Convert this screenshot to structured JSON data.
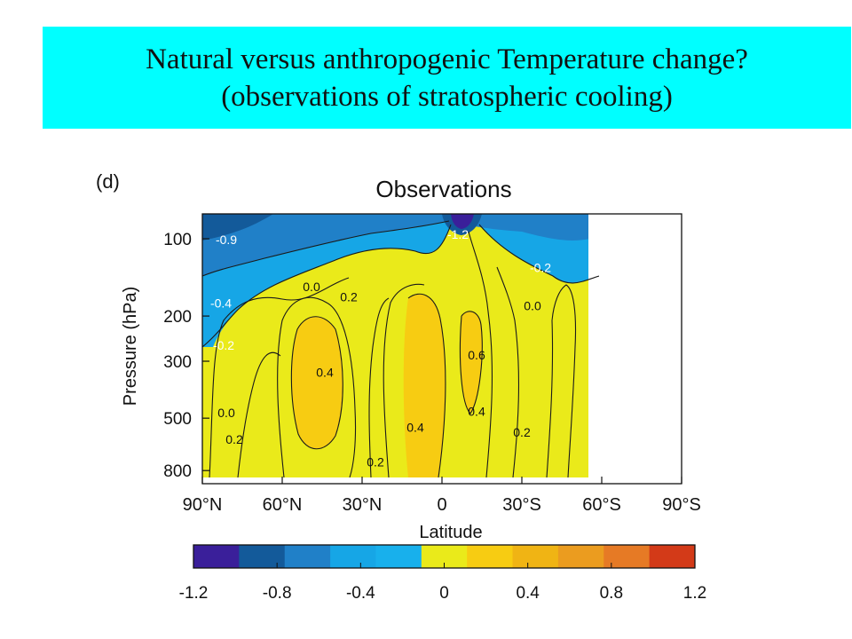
{
  "slide": {
    "title_line1": "Natural versus anthropogenic Temperature change?",
    "title_line2": "(observations of stratospheric cooling)",
    "banner_color": "#00ffff"
  },
  "chart_data": {
    "type": "heatmap",
    "panel_label": "(d)",
    "title": "Observations",
    "xlabel": "Latitude",
    "ylabel": "Pressure (hPa)",
    "x_ticks": [
      "90°N",
      "60°N",
      "30°N",
      "0",
      "30°S",
      "60°S",
      "90°S"
    ],
    "y_ticks": [
      "100",
      "200",
      "300",
      "500",
      "800"
    ],
    "y_scale": "log",
    "xlim": [
      90,
      -90
    ],
    "ylim": [
      80,
      900
    ],
    "data_extent_latitude": [
      90,
      -55
    ],
    "colorbar": {
      "ticks": [
        "-1.2",
        "-0.8",
        "-0.4",
        "0",
        "0.4",
        "0.8",
        "1.2"
      ],
      "range": [
        -1.2,
        1.2
      ],
      "colors": [
        "#3a1f9a",
        "#135a9a",
        "#2080c8",
        "#16a6e6",
        "#18b0ec",
        "#eaea1a",
        "#f7cc12",
        "#f0b414",
        "#eb9c1f",
        "#e67a25",
        "#d33a18"
      ]
    },
    "contour_labels": [
      {
        "text": "-0.9",
        "lat": 81,
        "p": 105
      },
      {
        "text": "-1.2",
        "lat": -6,
        "p": 100
      },
      {
        "text": "-0.2",
        "lat": -37,
        "p": 135
      },
      {
        "text": "-0.4",
        "lat": 83,
        "p": 185
      },
      {
        "text": "0.0",
        "lat": 49,
        "p": 160
      },
      {
        "text": "0.2",
        "lat": 35,
        "p": 175
      },
      {
        "text": "0.0",
        "lat": -34,
        "p": 190
      },
      {
        "text": "-0.2",
        "lat": 82,
        "p": 270
      },
      {
        "text": "0.6",
        "lat": -13,
        "p": 295
      },
      {
        "text": "0.4",
        "lat": 44,
        "p": 345
      },
      {
        "text": "0.0",
        "lat": 81,
        "p": 495
      },
      {
        "text": "0.4",
        "lat": -13,
        "p": 490
      },
      {
        "text": "0.4",
        "lat": 10,
        "p": 565
      },
      {
        "text": "0.2",
        "lat": -30,
        "p": 590
      },
      {
        "text": "0.2",
        "lat": 78,
        "p": 630
      },
      {
        "text": "0.2",
        "lat": 25,
        "p": 770
      }
    ]
  }
}
